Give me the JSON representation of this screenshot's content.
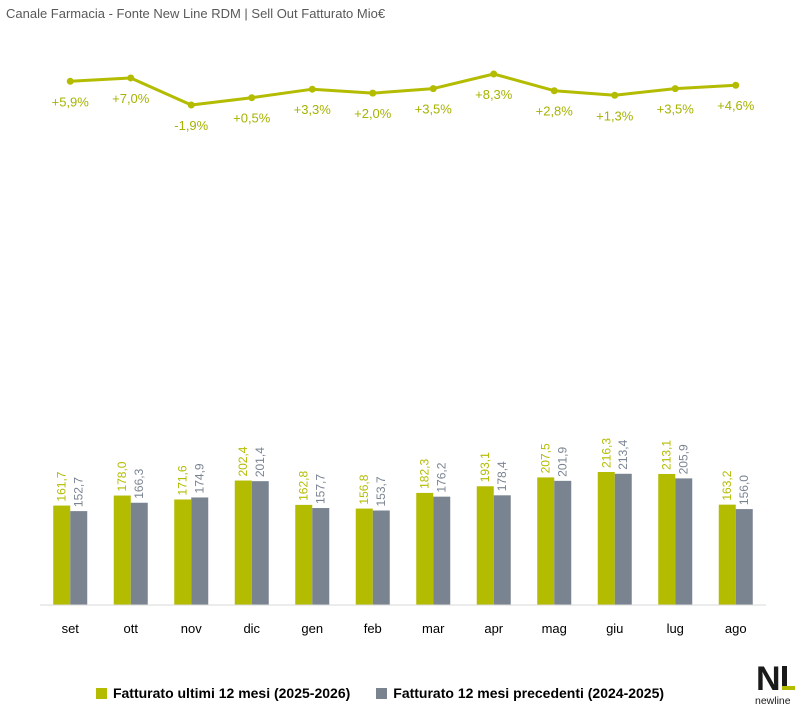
{
  "title": "Canale Farmacia - Fonte New Line RDM | Sell Out Fatturato Mio€",
  "colors": {
    "current": "#b3bc00",
    "previous": "#7a8491",
    "line": "#b3bc00",
    "pct_text": "#a6b300"
  },
  "chart_data": {
    "type": "bar",
    "categories": [
      "set",
      "ott",
      "nov",
      "dic",
      "gen",
      "feb",
      "mar",
      "apr",
      "mag",
      "giu",
      "lug",
      "ago"
    ],
    "series": [
      {
        "name": "Fatturato ultimi 12 mesi (2025-2026)",
        "values": [
          161.7,
          178.0,
          171.6,
          202.4,
          162.8,
          156.8,
          182.3,
          193.1,
          207.5,
          216.3,
          213.1,
          163.2
        ],
        "labels": [
          "161,7",
          "178,0",
          "171,6",
          "202,4",
          "162,8",
          "156,8",
          "182,3",
          "193,1",
          "207,5",
          "216,3",
          "213,1",
          "163,2"
        ]
      },
      {
        "name": "Fatturato 12 mesi precedenti (2024-2025)",
        "values": [
          152.7,
          166.3,
          174.9,
          201.4,
          157.7,
          153.7,
          176.2,
          178.4,
          201.9,
          213.4,
          205.9,
          156.0
        ],
        "labels": [
          "152,7",
          "166,3",
          "174,9",
          "201,4",
          "157,7",
          "153,7",
          "176,2",
          "178,4",
          "201,9",
          "213,4",
          "205,9",
          "156,0"
        ]
      }
    ],
    "growth": {
      "values": [
        5.9,
        7.0,
        -1.9,
        0.5,
        3.3,
        2.0,
        3.5,
        8.3,
        2.8,
        1.3,
        3.5,
        4.6
      ],
      "labels": [
        "+5,9%",
        "+7,0%",
        "-1,9%",
        "+0,5%",
        "+3,3%",
        "+2,0%",
        "+3,5%",
        "+8,3%",
        "+2,8%",
        "+1,3%",
        "+3,5%",
        "+4,6%"
      ]
    },
    "legend": "bottom",
    "grid": false
  },
  "logo": {
    "mark": "NL",
    "text": "newline"
  }
}
